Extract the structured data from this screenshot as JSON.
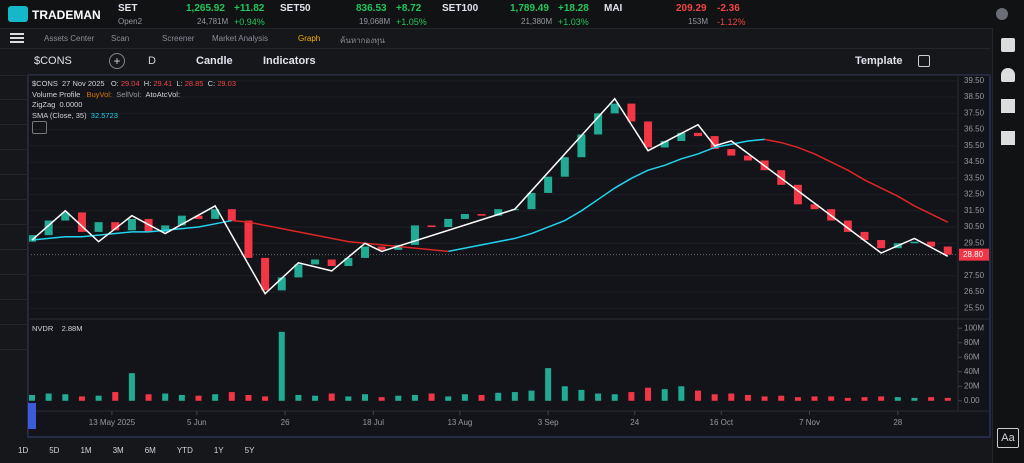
{
  "header": {
    "logo": "TRADEMAN",
    "tickers": [
      {
        "name": "SET",
        "price": "1,265.92",
        "change": "+11.82",
        "sub": "Open2",
        "volume": "24,781M",
        "pct": "+0.94%"
      },
      {
        "name": "SET50",
        "price": "836.53",
        "change": "+8.72",
        "volume": "19,068M",
        "pct": "+1.05%"
      },
      {
        "name": "SET100",
        "price": "1,789.49",
        "change": "+18.28",
        "volume": "21,380M",
        "pct": "+1.03%"
      },
      {
        "name": "MAI",
        "price": "209.29",
        "change": "-2.36",
        "volume": "153M",
        "pct": "-1.12%"
      }
    ]
  },
  "nav": [
    "Assets Center",
    "Scan",
    "Screener",
    "Market Analysis",
    "Graph",
    "ค้นหากองทุน"
  ],
  "toolbar": {
    "symbol": "$CONS",
    "interval": "D",
    "chart_style": "Candle",
    "indicators": "Indicators",
    "template": "Template"
  },
  "legend": {
    "symbol": "$CONS",
    "date": "27 Nov 2025",
    "o_label": "O:",
    "o": "29.04",
    "h_label": "H:",
    "h": "29.41",
    "l_label": "L:",
    "l": "28.85",
    "c_label": "C:",
    "c": "29.03",
    "volume_profile": "Volume Profile",
    "buy_vol": "BuyVol:",
    "sell_vol": "SellVol:",
    "atoatc_vol": "AtoAtcVol:",
    "zigzag": "ZigZag",
    "zigzag_value": "0.0000",
    "sma": "SMA (Close, 35)",
    "sma_value": "32.5723"
  },
  "volume_legend": {
    "name": "NVDR",
    "value": "2.88M"
  },
  "ranges": [
    "1D",
    "5D",
    "1M",
    "3M",
    "6M",
    "YTD",
    "1Y",
    "5Y"
  ],
  "font_button": "Aa",
  "chart_data": {
    "type": "candlestick",
    "open": [
      29.6,
      30.0,
      30.9,
      31.4,
      30.2,
      30.8,
      30.3,
      31.0,
      30.2,
      30.6,
      31.2,
      31.0,
      31.6,
      30.9,
      28.6,
      26.6,
      27.4,
      28.2,
      28.5,
      28.1,
      28.6,
      29.3,
      29.1,
      29.4,
      30.6,
      30.5,
      31.0,
      31.3,
      31.2,
      31.6,
      31.6,
      32.6,
      33.6,
      34.8,
      36.2,
      37.5,
      38.1,
      37.0,
      35.4,
      35.8,
      36.3,
      36.1,
      35.3,
      34.9,
      34.6,
      34.0,
      33.1,
      31.9,
      31.6,
      30.9,
      30.2,
      29.7,
      29.2,
      29.5,
      29.6,
      29.3
    ],
    "close": [
      30.0,
      30.9,
      31.4,
      30.2,
      30.8,
      30.3,
      31.0,
      30.2,
      30.6,
      31.2,
      31.0,
      31.6,
      30.9,
      28.6,
      26.6,
      27.4,
      28.2,
      28.5,
      28.1,
      28.6,
      29.3,
      29.1,
      29.4,
      30.6,
      30.5,
      31.0,
      31.3,
      31.2,
      31.6,
      31.6,
      32.6,
      33.6,
      34.8,
      36.2,
      37.5,
      38.1,
      37.0,
      35.4,
      35.8,
      36.3,
      36.1,
      35.3,
      34.9,
      34.6,
      34.0,
      33.1,
      31.9,
      31.6,
      30.9,
      30.2,
      29.7,
      29.2,
      29.5,
      29.6,
      29.3,
      28.8
    ],
    "series": [
      {
        "name": "SMA",
        "color": "#22d3ee",
        "values": [
          29.7,
          29.8,
          29.9,
          29.9,
          30.0,
          30.1,
          30.2,
          30.2,
          30.3,
          30.4,
          30.5,
          30.7,
          30.9,
          null,
          null,
          null,
          null,
          null,
          null,
          null,
          null,
          null,
          null,
          null,
          null,
          29.0,
          29.2,
          29.4,
          29.6,
          29.8,
          30.1,
          30.5,
          30.9,
          31.5,
          32.2,
          32.9,
          33.5,
          34.0,
          34.3,
          34.7,
          35.0,
          35.4,
          35.6,
          35.8,
          35.9,
          null,
          null,
          null,
          null,
          null,
          null,
          null,
          null,
          null,
          null,
          null
        ]
      },
      {
        "color": "#dc2626",
        "values": [
          null,
          null,
          null,
          null,
          null,
          null,
          null,
          null,
          null,
          null,
          null,
          null,
          30.9,
          30.8,
          30.6,
          30.4,
          30.2,
          30.0,
          29.8,
          29.6,
          29.5,
          29.4,
          29.3,
          29.2,
          29.1,
          29.0,
          null,
          null,
          null,
          null,
          null,
          null,
          null,
          null,
          null,
          null,
          null,
          null,
          null,
          null,
          null,
          null,
          null,
          null,
          35.9,
          35.7,
          35.4,
          35.0,
          34.5,
          34.0,
          33.4,
          32.9,
          32.4,
          31.8,
          31.3,
          30.8
        ]
      }
    ],
    "zigzag": {
      "color": "#ffffff",
      "index": [
        0,
        2,
        4,
        6,
        8,
        11,
        14,
        16,
        18,
        20,
        21,
        29,
        35,
        37,
        40,
        41,
        42,
        51,
        53,
        55
      ],
      "values": [
        29.7,
        31.5,
        29.6,
        31.2,
        30.1,
        31.8,
        26.4,
        28.3,
        27.8,
        29.5,
        29.0,
        31.6,
        38.4,
        35.2,
        36.8,
        35.5,
        35.8,
        28.9,
        29.8,
        28.7
      ]
    },
    "up_color": "#22ab94",
    "down_color": "#f23645",
    "ylim": [
      24.9,
      39.8
    ],
    "yticks": [
      {
        "value": 25.5,
        "label": "25.50"
      },
      {
        "value": 26.5,
        "label": "26.50"
      },
      {
        "value": 27.5,
        "label": "27.50"
      },
      {
        "value": 29.5,
        "label": "29.50"
      },
      {
        "value": 30.5,
        "label": "30.50"
      },
      {
        "value": 31.5,
        "label": "31.50"
      },
      {
        "value": 32.5,
        "label": "32.50"
      },
      {
        "value": 33.5,
        "label": "33.50"
      },
      {
        "value": 34.5,
        "label": "34.50"
      },
      {
        "value": 35.5,
        "label": "35.50"
      },
      {
        "value": 36.5,
        "label": "36.50"
      },
      {
        "value": 37.5,
        "label": "37.50"
      },
      {
        "value": 38.5,
        "label": "38.50"
      },
      {
        "value": 39.5,
        "label": "39.50"
      }
    ],
    "last_price": {
      "value": 28.8,
      "label": "28.80"
    },
    "xticks": [
      {
        "value": 4.8,
        "label": "13 May 2025"
      },
      {
        "value": 9.9,
        "label": "5 Jun"
      },
      {
        "value": 15.2,
        "label": "26"
      },
      {
        "value": 20.5,
        "label": "18 Jul"
      },
      {
        "value": 25.7,
        "label": "13 Aug"
      },
      {
        "value": 31.0,
        "label": "3 Sep"
      },
      {
        "value": 36.2,
        "label": "24"
      },
      {
        "value": 41.4,
        "label": "16 Oct"
      },
      {
        "value": 46.7,
        "label": "7 Nov"
      },
      {
        "value": 52.0,
        "label": "28"
      }
    ],
    "volume": [
      8,
      10,
      9,
      6,
      7,
      12,
      38,
      9,
      10,
      8,
      7,
      9,
      12,
      8,
      6,
      95,
      8,
      7,
      10,
      6,
      9,
      5,
      7,
      8,
      10,
      6,
      9,
      8,
      11,
      12,
      14,
      45,
      20,
      15,
      10,
      9,
      12,
      18,
      16,
      20,
      14,
      9,
      10,
      8,
      6,
      7,
      5,
      6,
      6,
      4,
      5,
      6,
      5,
      4,
      5,
      4
    ],
    "volume_ylim": [
      -12.7,
      111.3
    ],
    "volume_yticks": [
      {
        "value": 0,
        "label": "0.00"
      },
      {
        "value": 20,
        "label": "20M"
      },
      {
        "value": 40,
        "label": "40M"
      },
      {
        "value": 60,
        "label": "60M"
      },
      {
        "value": 80,
        "label": "80M"
      },
      {
        "value": 100,
        "label": "100M"
      }
    ]
  }
}
